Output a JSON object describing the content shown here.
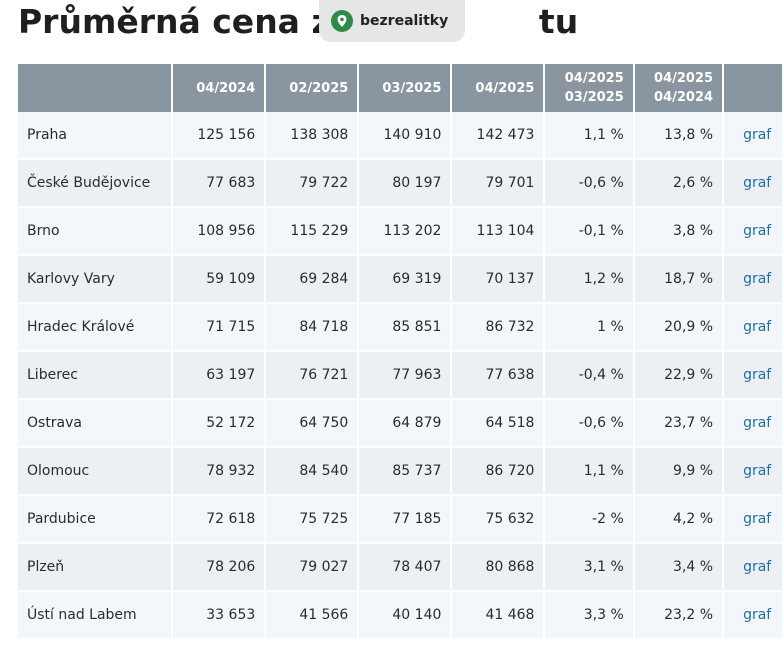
{
  "page": {
    "title": "Průměrná cena za",
    "title_tail": "tu"
  },
  "badge": {
    "label": "bezrealitky",
    "icon": "pin-icon"
  },
  "table": {
    "headers": [
      {
        "line1": "",
        "line2": ""
      },
      {
        "line1": "04/2024",
        "line2": ""
      },
      {
        "line1": "02/2025",
        "line2": ""
      },
      {
        "line1": "03/2025",
        "line2": ""
      },
      {
        "line1": "04/2025",
        "line2": ""
      },
      {
        "line1": "04/2025",
        "line2": "03/2025"
      },
      {
        "line1": "04/2025",
        "line2": "04/2024"
      },
      {
        "line1": "",
        "line2": ""
      }
    ],
    "rows": [
      [
        "Praha",
        "125 156",
        "138 308",
        "140 910",
        "142 473",
        "1,1 %",
        "13,8 %",
        "graf"
      ],
      [
        "České Budějovice",
        "77 683",
        "79 722",
        "80 197",
        "79 701",
        "-0,6 %",
        "2,6 %",
        "graf"
      ],
      [
        "Brno",
        "108 956",
        "115 229",
        "113 202",
        "113 104",
        "-0,1 %",
        "3,8 %",
        "graf"
      ],
      [
        "Karlovy Vary",
        "59 109",
        "69 284",
        "69 319",
        "70 137",
        "1,2 %",
        "18,7 %",
        "graf"
      ],
      [
        "Hradec Králové",
        "71 715",
        "84 718",
        "85 851",
        "86 732",
        "1 %",
        "20,9 %",
        "graf"
      ],
      [
        "Liberec",
        "63 197",
        "76 721",
        "77 963",
        "77 638",
        "-0,4 %",
        "22,9 %",
        "graf"
      ],
      [
        "Ostrava",
        "52 172",
        "64 750",
        "64 879",
        "64 518",
        "-0,6 %",
        "23,7 %",
        "graf"
      ],
      [
        "Olomouc",
        "78 932",
        "84 540",
        "85 737",
        "86 720",
        "1,1 %",
        "9,9 %",
        "graf"
      ],
      [
        "Pardubice",
        "72 618",
        "75 725",
        "77 185",
        "75 632",
        "-2 %",
        "4,2 %",
        "graf"
      ],
      [
        "Plzeň",
        "78 206",
        "79 027",
        "78 407",
        "80 868",
        "3,1 %",
        "3,4 %",
        "graf"
      ],
      [
        "Ústí nad Labem",
        "33 653",
        "41 566",
        "40 140",
        "41 468",
        "3,3 %",
        "23,2 %",
        "graf"
      ]
    ]
  },
  "colors": {
    "header_bg": "#8a969f",
    "row_light": "#f4f7fa",
    "row_dark": "#ecf0f3",
    "link": "#1d6fa8",
    "badge_green": "#2e8a49"
  }
}
